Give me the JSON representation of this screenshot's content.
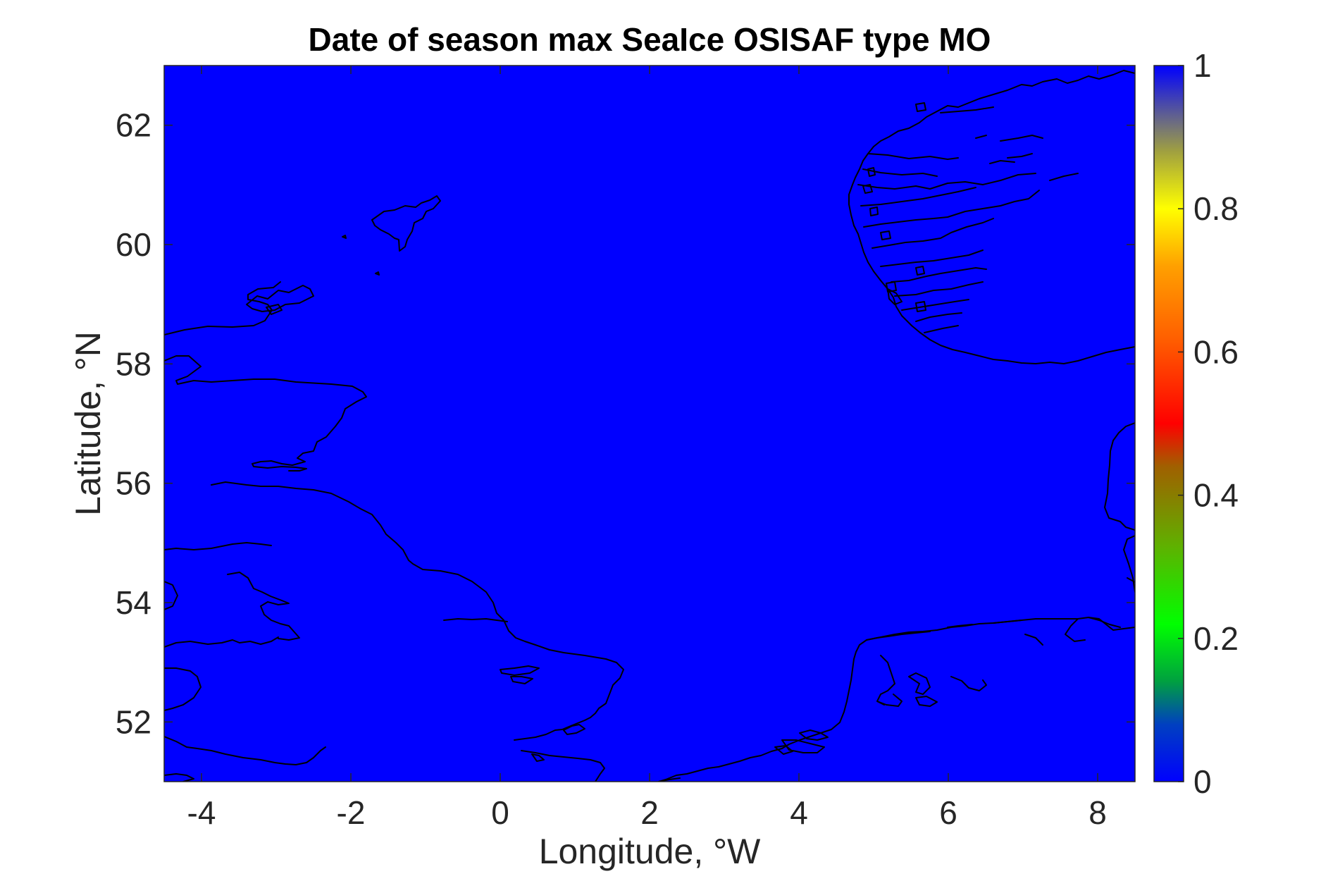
{
  "chart_data": {
    "type": "heatmap",
    "title": "Date of season max SeaIce OSISAF type MO",
    "xlabel": "Longitude, °W",
    "ylabel": "Latitude, °N",
    "xlim": [
      -4.5,
      8.5
    ],
    "ylim": [
      51,
      63
    ],
    "xticks": [
      -4,
      -2,
      0,
      2,
      4,
      6,
      8
    ],
    "xtick_labels": [
      "-4",
      "-2",
      "0",
      "2",
      "4",
      "6",
      "8"
    ],
    "yticks": [
      52,
      54,
      56,
      58,
      60,
      62
    ],
    "ytick_labels": [
      "52",
      "54",
      "56",
      "58",
      "60",
      "62"
    ],
    "field_value": 0,
    "colormap": "jet",
    "field_color": "#0000ff",
    "coastline_color": "#000000",
    "colorbar": {
      "range": [
        0,
        1
      ],
      "ticks": [
        0,
        0.2,
        0.4,
        0.6,
        0.8,
        1
      ],
      "tick_labels": [
        "0",
        "0.2",
        "0.4",
        "0.6",
        "0.8",
        "1"
      ]
    },
    "grid": false,
    "legend": "none"
  }
}
